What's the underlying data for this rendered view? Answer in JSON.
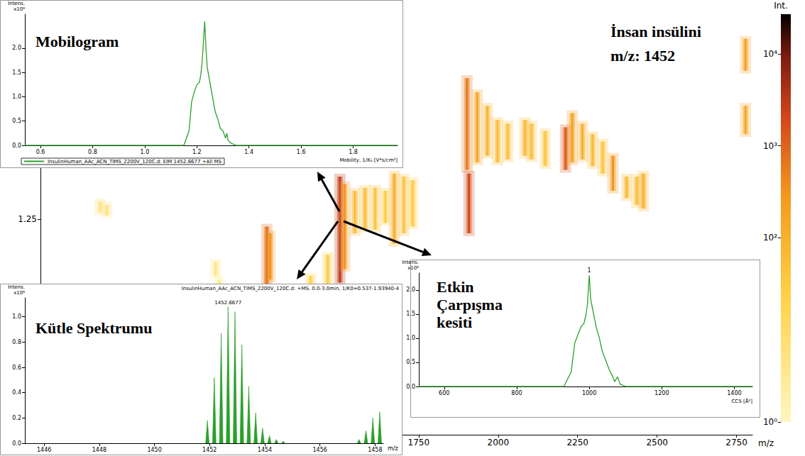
{
  "chart_data": [
    {
      "type": "heatmap",
      "annotation": [
        "İnsan insülini",
        "m/z: 1452"
      ],
      "x_label": "m/z",
      "xlim": [
        560,
        2800
      ],
      "xticks": [
        1750,
        2000,
        2250,
        2500,
        2750
      ],
      "ylim": [
        0.9,
        1.6
      ],
      "yticks": [
        1.25
      ],
      "grid": false,
      "streaks": {
        "mz": [
          748,
          769,
          1111,
          1122,
          1272,
          1282,
          1502,
          1517,
          1549,
          1581,
          1613,
          1645,
          1673,
          1703,
          1731,
          1902,
          1908,
          1934,
          1966,
          1998,
          2030,
          2084,
          2105,
          2148,
          2212,
          2233,
          2265,
          2297,
          2329,
          2361,
          2404,
          2436,
          2457,
          2778,
          2778,
          1464,
          1410
        ],
        "mobility_low": [
          1.261,
          1.256,
          1.158,
          1.124,
          1.135,
          1.152,
          1.147,
          1.169,
          1.227,
          1.233,
          1.233,
          1.244,
          1.21,
          1.227,
          1.238,
          1.33,
          1.227,
          1.342,
          1.353,
          1.342,
          1.347,
          1.353,
          1.347,
          1.336,
          1.33,
          1.342,
          1.347,
          1.336,
          1.324,
          1.296,
          1.284,
          1.273,
          1.267,
          1.491,
          1.388,
          1.135,
          1.124
        ],
        "mobility_high": [
          1.279,
          1.273,
          1.181,
          1.152,
          1.238,
          1.227,
          1.319,
          1.307,
          1.296,
          1.301,
          1.301,
          1.296,
          1.324,
          1.319,
          1.313,
          1.479,
          1.324,
          1.456,
          1.434,
          1.411,
          1.405,
          1.411,
          1.405,
          1.393,
          1.399,
          1.422,
          1.405,
          1.388,
          1.376,
          1.353,
          1.319,
          1.319,
          1.324,
          1.543,
          1.434,
          1.192,
          1.158
        ],
        "intensity": [
          5,
          5,
          4,
          3,
          800,
          300,
          3000,
          300,
          60,
          50,
          40,
          30,
          100,
          40,
          30,
          600,
          2000,
          150,
          80,
          60,
          50,
          60,
          50,
          40,
          1200,
          200,
          100,
          60,
          40,
          300,
          60,
          50,
          80,
          200,
          150,
          30,
          20
        ]
      },
      "colorbar": {
        "title": "Int.",
        "log": true,
        "range": [
          1,
          27000
        ],
        "ticks": [
          {
            "value": 1,
            "label": "10⁰"
          },
          {
            "value": 100,
            "label": "10²"
          },
          {
            "value": 1000,
            "label": "10³"
          },
          {
            "value": 10000,
            "label": "10⁴"
          }
        ]
      }
    },
    {
      "type": "line",
      "title": "Mobilogram",
      "x_label": "Mobility, 1/K₀ [V*s/cm²]",
      "y_label": "Intens.",
      "y_unit": "x10⁶",
      "legend": "bottom",
      "grid": false,
      "xlim": [
        0.54,
        1.97
      ],
      "xticks": [
        0.6,
        0.8,
        {
          "value": 1,
          "label": "1.0"
        },
        1.2,
        1.4,
        1.6,
        1.8
      ],
      "ylim": [
        0,
        2.7
      ],
      "yticks": [
        {
          "value": 0,
          "label": "0.0"
        },
        0.5,
        {
          "value": 1,
          "label": "1.0"
        },
        1.5,
        {
          "value": 2,
          "label": "2.0"
        }
      ],
      "x": [
        0.54,
        1.15,
        1.17,
        1.18,
        1.19,
        1.2,
        1.21,
        1.215,
        1.22,
        1.225,
        1.23,
        1.235,
        1.24,
        1.25,
        1.26,
        1.27,
        1.28,
        1.29,
        1.3,
        1.31,
        1.315,
        1.32,
        1.33,
        1.35,
        1.97
      ],
      "series": [
        {
          "name": "InsulinHuman_AAc_ACN_TIMS_2200V_120C.d: EIM 1452.6677 +All MS",
          "color": "#2aa02a",
          "values": [
            0,
            0,
            0.3,
            0.9,
            1.1,
            1.25,
            1.3,
            1.45,
            1.7,
            2.1,
            2.55,
            2.0,
            1.6,
            1.3,
            1.0,
            0.7,
            0.55,
            0.35,
            0.3,
            0.15,
            0.25,
            0.1,
            0.05,
            0,
            0
          ]
        }
      ]
    },
    {
      "type": "spectrum",
      "title": "Kütle Spektrumu",
      "subtitle": "InsulinHuman_AAc_ACN_TIMS_2200V_120C.d: +MS, 0.0-3.0min, 1/K0=0.537-1.93940-4",
      "x_label": "m/z",
      "y_label": "Intens.",
      "y_unit": "x10⁶",
      "grid": false,
      "xlim": [
        1445.3,
        1458.3
      ],
      "xticks": [
        1446,
        1448,
        1450,
        1452,
        1454,
        1456,
        1458
      ],
      "ylim": [
        0,
        1.15
      ],
      "yticks": [
        {
          "value": 0,
          "label": "0.0"
        },
        0.2,
        0.4,
        0.6,
        0.8,
        {
          "value": 1,
          "label": "1.0"
        }
      ],
      "x": [
        1451.92,
        1452.17,
        1452.42,
        1452.67,
        1452.92,
        1453.17,
        1453.42,
        1453.67,
        1453.92,
        1454.17,
        1454.42,
        1454.67,
        1457.42,
        1457.67,
        1457.92,
        1458.17
      ],
      "values": [
        0.18,
        0.52,
        0.87,
        1.08,
        1.04,
        0.78,
        0.45,
        0.24,
        0.12,
        0.06,
        0.03,
        0.015,
        0.03,
        0.1,
        0.2,
        0.25
      ],
      "color": "#2aa02a",
      "peak_label": "1452.6677"
    },
    {
      "type": "line",
      "title": "Etkin Çarpışma kesiti",
      "x_label": "CCS [Å²]",
      "y_label": "Intens.",
      "y_unit": "x10⁶",
      "grid": false,
      "xlim": [
        530,
        1450
      ],
      "xticks": [
        600,
        800,
        1000,
        1200,
        1400
      ],
      "ylim": [
        0,
        2.35
      ],
      "yticks": [
        {
          "value": 0,
          "label": "0.0"
        },
        0.5,
        {
          "value": 1,
          "label": "1.0"
        },
        1.5,
        {
          "value": 2,
          "label": "2.0"
        }
      ],
      "x": [
        530,
        930,
        950,
        960,
        970,
        978,
        985,
        990,
        995,
        998,
        1000,
        1004,
        1012,
        1020,
        1028,
        1035,
        1045,
        1055,
        1065,
        1070,
        1078,
        1085,
        1100,
        1450
      ],
      "values": [
        0,
        0,
        0.3,
        0.9,
        1.1,
        1.25,
        1.3,
        1.45,
        1.7,
        2.1,
        2.3,
        1.8,
        1.5,
        1.2,
        1.0,
        0.75,
        0.55,
        0.35,
        0.2,
        0.1,
        0.2,
        0.05,
        0,
        0
      ],
      "color": "#2aa02a",
      "peak_label": "1"
    }
  ]
}
